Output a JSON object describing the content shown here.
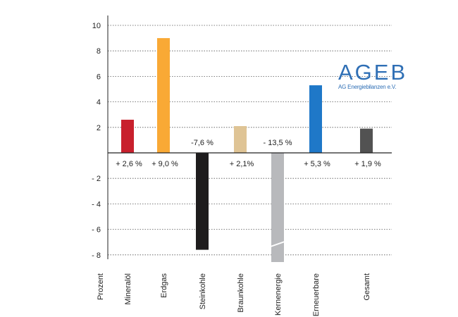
{
  "chart_data": {
    "type": "bar",
    "ylabel": "Prozent",
    "ylim": [
      -8.4,
      10
    ],
    "yticks": [
      10,
      8,
      6,
      4,
      2,
      0,
      -2,
      -4,
      -6,
      -8
    ],
    "ytick_labels": [
      "10",
      "8",
      "6",
      "4",
      "2",
      "",
      "- 2",
      "- 4",
      "- 6",
      "- 8"
    ],
    "grid": true,
    "categories": [
      "Mineralöl",
      "Erdgas",
      "Steinkohle",
      "Braunkohle",
      "Kernenergie",
      "Erneuerbare",
      "Gesamt"
    ],
    "values": [
      2.6,
      9.0,
      -7.6,
      2.1,
      -13.5,
      5.3,
      1.9
    ],
    "value_labels": [
      "+ 2,6 %",
      "+ 9,0 %",
      "-7,6 %",
      "+ 2,1%",
      "- 13,5 %",
      "+ 5,3 %",
      "+ 1,9 %"
    ],
    "colors": [
      "#c8202d",
      "#f9a935",
      "#1e1c1d",
      "#dfc495",
      "#b8b9bc",
      "#1f78c8",
      "#525252"
    ],
    "broken_axis_bars": [
      "Kernenergie"
    ]
  },
  "logo": {
    "name": "AGEB",
    "subtitle": "AG Energiebilanzen e.V."
  }
}
